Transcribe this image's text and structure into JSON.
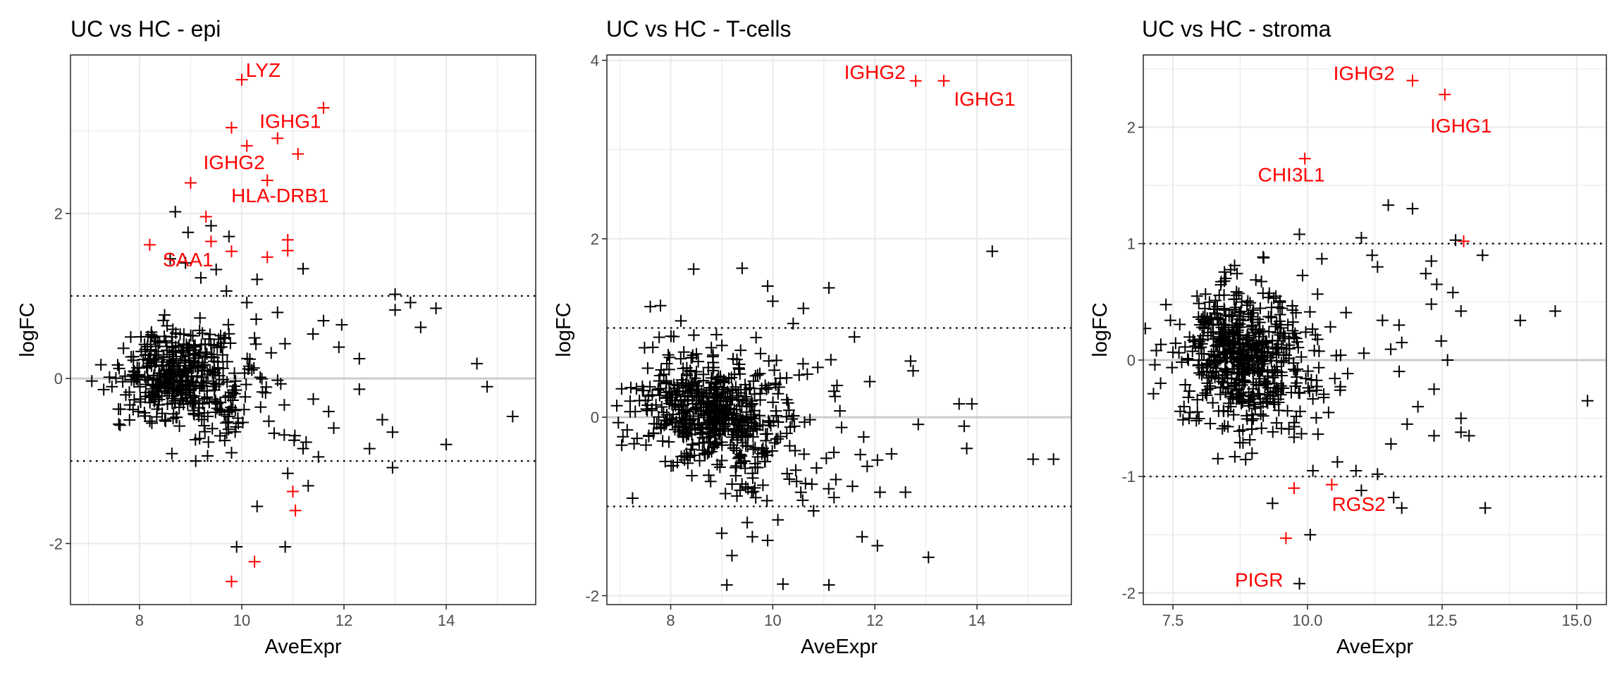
{
  "colors": {
    "background": "#ffffff",
    "panel_border": "#333333",
    "grid_major": "#ebebeb",
    "zero_line": "#cccccc",
    "threshold_line": "#000000",
    "point_default": "#000000",
    "point_highlight": "#ff0000",
    "tick_text": "#4d4d4d",
    "label_text": "#000000"
  },
  "chart_data": [
    {
      "type": "scatter",
      "marker": "plus",
      "title": "UC vs HC - epi",
      "xlabel": "AveExpr",
      "ylabel": "logFC",
      "xlim": [
        6.65,
        15.75
      ],
      "ylim": [
        -2.74,
        3.92
      ],
      "xticks": [
        8,
        10,
        12,
        14
      ],
      "xtick_labels": [
        "8",
        "10",
        "12",
        "14"
      ],
      "yticks": [
        -2,
        0,
        2
      ],
      "ytick_labels": [
        "-2",
        "0",
        "2"
      ],
      "hlines": {
        "zero": 0,
        "thresholds": [
          1,
          -1
        ]
      },
      "grid": true,
      "seed": 11,
      "bulk": {
        "n": 460,
        "x_mean": 8.7,
        "x_sd": 0.55,
        "y_mean": 0.06,
        "y_sd": 0.28
      },
      "points": [
        {
          "x": 11.6,
          "y": 3.28,
          "hl": true
        },
        {
          "x": 10.0,
          "y": 3.62,
          "hl": true
        },
        {
          "x": 9.8,
          "y": 3.04,
          "hl": true
        },
        {
          "x": 10.1,
          "y": 2.82,
          "hl": true
        },
        {
          "x": 10.7,
          "y": 2.91,
          "hl": true
        },
        {
          "x": 11.1,
          "y": 2.72,
          "hl": true
        },
        {
          "x": 9.0,
          "y": 2.37,
          "hl": true
        },
        {
          "x": 10.5,
          "y": 2.4,
          "hl": true
        },
        {
          "x": 9.3,
          "y": 1.96,
          "hl": true
        },
        {
          "x": 8.2,
          "y": 1.62,
          "hl": true
        },
        {
          "x": 9.4,
          "y": 1.66,
          "hl": true
        },
        {
          "x": 9.8,
          "y": 1.54,
          "hl": true
        },
        {
          "x": 10.5,
          "y": 1.47,
          "hl": true
        },
        {
          "x": 10.9,
          "y": 1.68,
          "hl": true
        },
        {
          "x": 10.9,
          "y": 1.55,
          "hl": true
        },
        {
          "x": 11.0,
          "y": -1.37,
          "hl": true
        },
        {
          "x": 11.05,
          "y": -1.6,
          "hl": true
        },
        {
          "x": 10.25,
          "y": -2.22,
          "hl": true
        },
        {
          "x": 9.8,
          "y": -2.46,
          "hl": true
        },
        {
          "x": 8.7,
          "y": 2.02
        },
        {
          "x": 8.95,
          "y": 1.77
        },
        {
          "x": 9.4,
          "y": 1.85
        },
        {
          "x": 9.75,
          "y": 1.72
        },
        {
          "x": 8.6,
          "y": 1.45
        },
        {
          "x": 8.9,
          "y": 1.4
        },
        {
          "x": 9.2,
          "y": 1.22
        },
        {
          "x": 9.5,
          "y": 1.32
        },
        {
          "x": 10.3,
          "y": 1.2
        },
        {
          "x": 11.2,
          "y": 1.33
        },
        {
          "x": 9.7,
          "y": 1.06
        },
        {
          "x": 10.1,
          "y": 0.92
        },
        {
          "x": 10.7,
          "y": 0.8
        },
        {
          "x": 11.6,
          "y": 0.7
        },
        {
          "x": 11.9,
          "y": 0.38
        },
        {
          "x": 12.3,
          "y": 0.24
        },
        {
          "x": 13.0,
          "y": 0.83
        },
        {
          "x": 13.0,
          "y": 1.02
        },
        {
          "x": 13.3,
          "y": 0.92
        },
        {
          "x": 13.5,
          "y": 0.62
        },
        {
          "x": 13.8,
          "y": 0.85
        },
        {
          "x": 14.6,
          "y": 0.18
        },
        {
          "x": 14.8,
          "y": -0.1
        },
        {
          "x": 15.3,
          "y": -0.46
        },
        {
          "x": 12.3,
          "y": -0.13
        },
        {
          "x": 12.5,
          "y": -0.85
        },
        {
          "x": 12.75,
          "y": -0.5
        },
        {
          "x": 12.95,
          "y": -0.65
        },
        {
          "x": 12.95,
          "y": -1.08
        },
        {
          "x": 14.0,
          "y": -0.8
        },
        {
          "x": 11.8,
          "y": -0.6
        },
        {
          "x": 11.5,
          "y": -0.95
        },
        {
          "x": 11.2,
          "y": -0.85
        },
        {
          "x": 11.3,
          "y": -1.3
        },
        {
          "x": 10.9,
          "y": -1.15
        },
        {
          "x": 10.3,
          "y": -1.55
        },
        {
          "x": 9.1,
          "y": -1.0
        },
        {
          "x": 9.8,
          "y": -0.9
        },
        {
          "x": 9.9,
          "y": -2.04
        },
        {
          "x": 10.85,
          "y": -2.04
        },
        {
          "x": 11.7,
          "y": -0.4
        },
        {
          "x": 11.4,
          "y": -0.25
        }
      ],
      "labels": [
        {
          "text": "LYZ",
          "x": 10.42,
          "y": 3.72
        },
        {
          "text": "IGHG1",
          "x": 10.95,
          "y": 3.1
        },
        {
          "text": "IGHG2",
          "x": 9.85,
          "y": 2.6
        },
        {
          "text": "HLA-DRB1",
          "x": 10.75,
          "y": 2.2
        },
        {
          "text": "SAA1",
          "x": 8.95,
          "y": 1.42
        }
      ]
    },
    {
      "type": "scatter",
      "marker": "plus",
      "title": "UC vs HC - T-cells",
      "xlabel": "AveExpr",
      "ylabel": "logFC",
      "xlim": [
        6.75,
        15.85
      ],
      "ylim": [
        -2.1,
        4.06
      ],
      "xticks": [
        8,
        10,
        12,
        14
      ],
      "xtick_labels": [
        "8",
        "10",
        "12",
        "14"
      ],
      "yticks": [
        -2,
        0,
        2,
        4
      ],
      "ytick_labels": [
        "-2",
        "0",
        "2",
        "4"
      ],
      "hlines": {
        "zero": 0,
        "thresholds": [
          1,
          -1
        ]
      },
      "grid": true,
      "seed": 23,
      "bulk": {
        "n": 620,
        "x_mean": 8.7,
        "x_sd": 0.65,
        "y_mean": 0.05,
        "y_sd": 0.3
      },
      "points": [
        {
          "x": 12.8,
          "y": 3.77,
          "hl": true
        },
        {
          "x": 13.35,
          "y": 3.77,
          "hl": true
        },
        {
          "x": 14.3,
          "y": 1.86
        },
        {
          "x": 12.7,
          "y": 0.63
        },
        {
          "x": 12.75,
          "y": 0.52
        },
        {
          "x": 12.85,
          "y": -0.08
        },
        {
          "x": 13.65,
          "y": 0.15
        },
        {
          "x": 13.9,
          "y": 0.15
        },
        {
          "x": 13.75,
          "y": -0.1
        },
        {
          "x": 13.8,
          "y": -0.35
        },
        {
          "x": 15.1,
          "y": -0.47
        },
        {
          "x": 15.5,
          "y": -0.47
        },
        {
          "x": 12.6,
          "y": -0.84
        },
        {
          "x": 13.05,
          "y": -1.57
        },
        {
          "x": 12.05,
          "y": -1.44
        },
        {
          "x": 11.75,
          "y": -1.34
        },
        {
          "x": 11.1,
          "y": -1.88
        },
        {
          "x": 10.2,
          "y": -1.87
        },
        {
          "x": 9.1,
          "y": -1.88
        },
        {
          "x": 9.2,
          "y": -1.55
        },
        {
          "x": 9.6,
          "y": -1.34
        },
        {
          "x": 9.9,
          "y": -1.38
        },
        {
          "x": 10.1,
          "y": -1.15
        },
        {
          "x": 9.5,
          "y": -1.18
        },
        {
          "x": 9.0,
          "y": -1.3
        },
        {
          "x": 10.8,
          "y": -1.05
        },
        {
          "x": 11.2,
          "y": -0.9
        },
        {
          "x": 12.05,
          "y": -0.48
        },
        {
          "x": 12.1,
          "y": -0.84
        },
        {
          "x": 11.85,
          "y": -0.55
        },
        {
          "x": 11.9,
          "y": 0.4
        },
        {
          "x": 11.6,
          "y": 0.9
        },
        {
          "x": 11.1,
          "y": 1.45
        },
        {
          "x": 10.6,
          "y": 1.22
        },
        {
          "x": 9.9,
          "y": 1.47
        },
        {
          "x": 10.0,
          "y": 1.3
        },
        {
          "x": 9.4,
          "y": 1.67
        },
        {
          "x": 8.45,
          "y": 1.66
        },
        {
          "x": 7.6,
          "y": 1.24
        },
        {
          "x": 7.8,
          "y": 1.25
        },
        {
          "x": 8.2,
          "y": 1.08
        },
        {
          "x": 10.4,
          "y": 1.05
        }
      ],
      "labels": [
        {
          "text": "IGHG2",
          "x": 12.0,
          "y": 3.85
        },
        {
          "text": "IGHG1",
          "x": 14.15,
          "y": 3.55
        }
      ]
    },
    {
      "type": "scatter",
      "marker": "plus",
      "title": "UC vs HC - stroma",
      "xlabel": "AveExpr",
      "ylabel": "logFC",
      "xlim": [
        6.95,
        15.55
      ],
      "ylim": [
        -2.1,
        2.62
      ],
      "xticks": [
        7.5,
        10.0,
        12.5,
        15.0
      ],
      "xtick_labels": [
        "7.5",
        "10.0",
        "12.5",
        "15.0"
      ],
      "yticks": [
        -2,
        -1,
        0,
        1,
        2
      ],
      "ytick_labels": [
        "-2",
        "-1",
        "0",
        "1",
        "2"
      ],
      "hlines": {
        "zero": 0,
        "thresholds": [
          1,
          -1
        ]
      },
      "grid": true,
      "seed": 37,
      "bulk": {
        "n": 600,
        "x_mean": 8.75,
        "x_sd": 0.55,
        "y_mean": 0.08,
        "y_sd": 0.28
      },
      "points": [
        {
          "x": 11.95,
          "y": 2.4,
          "hl": true
        },
        {
          "x": 12.55,
          "y": 2.28,
          "hl": true
        },
        {
          "x": 9.95,
          "y": 1.73,
          "hl": true
        },
        {
          "x": 12.9,
          "y": 1.02,
          "hl": true
        },
        {
          "x": 9.75,
          "y": -1.1,
          "hl": true
        },
        {
          "x": 10.45,
          "y": -1.07,
          "hl": true
        },
        {
          "x": 9.6,
          "y": -1.53,
          "hl": true
        },
        {
          "x": 11.5,
          "y": 1.33
        },
        {
          "x": 11.95,
          "y": 1.3
        },
        {
          "x": 9.85,
          "y": 1.08
        },
        {
          "x": 11.0,
          "y": 1.05
        },
        {
          "x": 11.2,
          "y": 0.9
        },
        {
          "x": 11.3,
          "y": 0.8
        },
        {
          "x": 12.3,
          "y": 0.85
        },
        {
          "x": 12.75,
          "y": 1.03
        },
        {
          "x": 13.25,
          "y": 0.9
        },
        {
          "x": 12.4,
          "y": 0.65
        },
        {
          "x": 12.7,
          "y": 0.58
        },
        {
          "x": 12.3,
          "y": 0.48
        },
        {
          "x": 12.85,
          "y": 0.42
        },
        {
          "x": 11.7,
          "y": 0.3
        },
        {
          "x": 11.75,
          "y": 0.15
        },
        {
          "x": 13.95,
          "y": 0.34
        },
        {
          "x": 14.6,
          "y": 0.42
        },
        {
          "x": 15.2,
          "y": -0.35
        },
        {
          "x": 12.6,
          "y": 0.0
        },
        {
          "x": 12.35,
          "y": -0.25
        },
        {
          "x": 12.05,
          "y": -0.4
        },
        {
          "x": 11.85,
          "y": -0.55
        },
        {
          "x": 11.55,
          "y": -0.72
        },
        {
          "x": 12.35,
          "y": -0.65
        },
        {
          "x": 12.85,
          "y": -0.5
        },
        {
          "x": 13.0,
          "y": -0.65
        },
        {
          "x": 12.85,
          "y": -0.62
        },
        {
          "x": 11.6,
          "y": -1.18
        },
        {
          "x": 11.75,
          "y": -1.27
        },
        {
          "x": 11.3,
          "y": -0.98
        },
        {
          "x": 10.9,
          "y": -0.95
        },
        {
          "x": 11.0,
          "y": -1.12
        },
        {
          "x": 10.1,
          "y": -0.95
        },
        {
          "x": 10.05,
          "y": -1.5
        },
        {
          "x": 9.85,
          "y": -1.92
        },
        {
          "x": 9.35,
          "y": -1.23
        },
        {
          "x": 13.3,
          "y": -1.27
        },
        {
          "x": 8.65,
          "y": -0.83
        },
        {
          "x": 8.8,
          "y": -0.6
        },
        {
          "x": 7.8,
          "y": -0.5
        }
      ],
      "labels": [
        {
          "text": "IGHG2",
          "x": 11.05,
          "y": 2.45
        },
        {
          "text": "IGHG1",
          "x": 12.85,
          "y": 2.0
        },
        {
          "text": "CHI3L1",
          "x": 9.7,
          "y": 1.58
        },
        {
          "text": "RGS2",
          "x": 10.95,
          "y": -1.25
        },
        {
          "text": "PIGR",
          "x": 9.1,
          "y": -1.9
        }
      ]
    }
  ]
}
